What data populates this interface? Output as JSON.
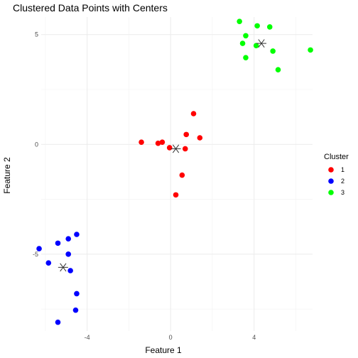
{
  "chart_data": {
    "type": "scatter",
    "title": "Clustered Data Points with Centers",
    "xlabel": "Feature 1",
    "ylabel": "Feature 2",
    "xlim": [
      -6.2,
      6.8
    ],
    "ylim": [
      -8.5,
      5.8
    ],
    "x_ticks": [
      -4,
      0,
      4
    ],
    "y_ticks": [
      -5,
      0,
      5
    ],
    "grid": true,
    "legend": {
      "title": "Cluster",
      "position": "right"
    },
    "series": [
      {
        "name": "1",
        "color": "#ff0000",
        "points": [
          [
            1.1,
            1.4
          ],
          [
            -1.4,
            0.1
          ],
          [
            -0.6,
            0.05
          ],
          [
            -0.4,
            0.1
          ],
          [
            0.75,
            0.45
          ],
          [
            1.4,
            0.3
          ],
          [
            -0.05,
            -0.15
          ],
          [
            0.7,
            -0.2
          ],
          [
            0.55,
            -1.4
          ],
          [
            0.25,
            -2.3
          ]
        ]
      },
      {
        "name": "2",
        "color": "#0000ff",
        "points": [
          [
            -4.5,
            -4.1
          ],
          [
            -4.9,
            -4.3
          ],
          [
            -5.4,
            -4.5
          ],
          [
            -6.3,
            -4.75
          ],
          [
            -4.9,
            -5.0
          ],
          [
            -5.85,
            -5.4
          ],
          [
            -4.8,
            -5.75
          ],
          [
            -4.5,
            -6.8
          ],
          [
            -4.55,
            -7.55
          ],
          [
            -5.4,
            -8.1
          ]
        ]
      },
      {
        "name": "3",
        "color": "#00ff00",
        "points": [
          [
            3.3,
            5.6
          ],
          [
            4.15,
            5.4
          ],
          [
            4.75,
            5.35
          ],
          [
            3.6,
            4.95
          ],
          [
            3.45,
            4.6
          ],
          [
            4.1,
            4.5
          ],
          [
            4.9,
            4.25
          ],
          [
            6.7,
            4.3
          ],
          [
            3.6,
            3.95
          ],
          [
            5.15,
            3.4
          ]
        ]
      }
    ],
    "centers": [
      {
        "cluster": "1",
        "x": 0.25,
        "y": -0.2
      },
      {
        "cluster": "2",
        "x": -5.15,
        "y": -5.6
      },
      {
        "cluster": "3",
        "x": 4.35,
        "y": 4.6
      }
    ]
  }
}
